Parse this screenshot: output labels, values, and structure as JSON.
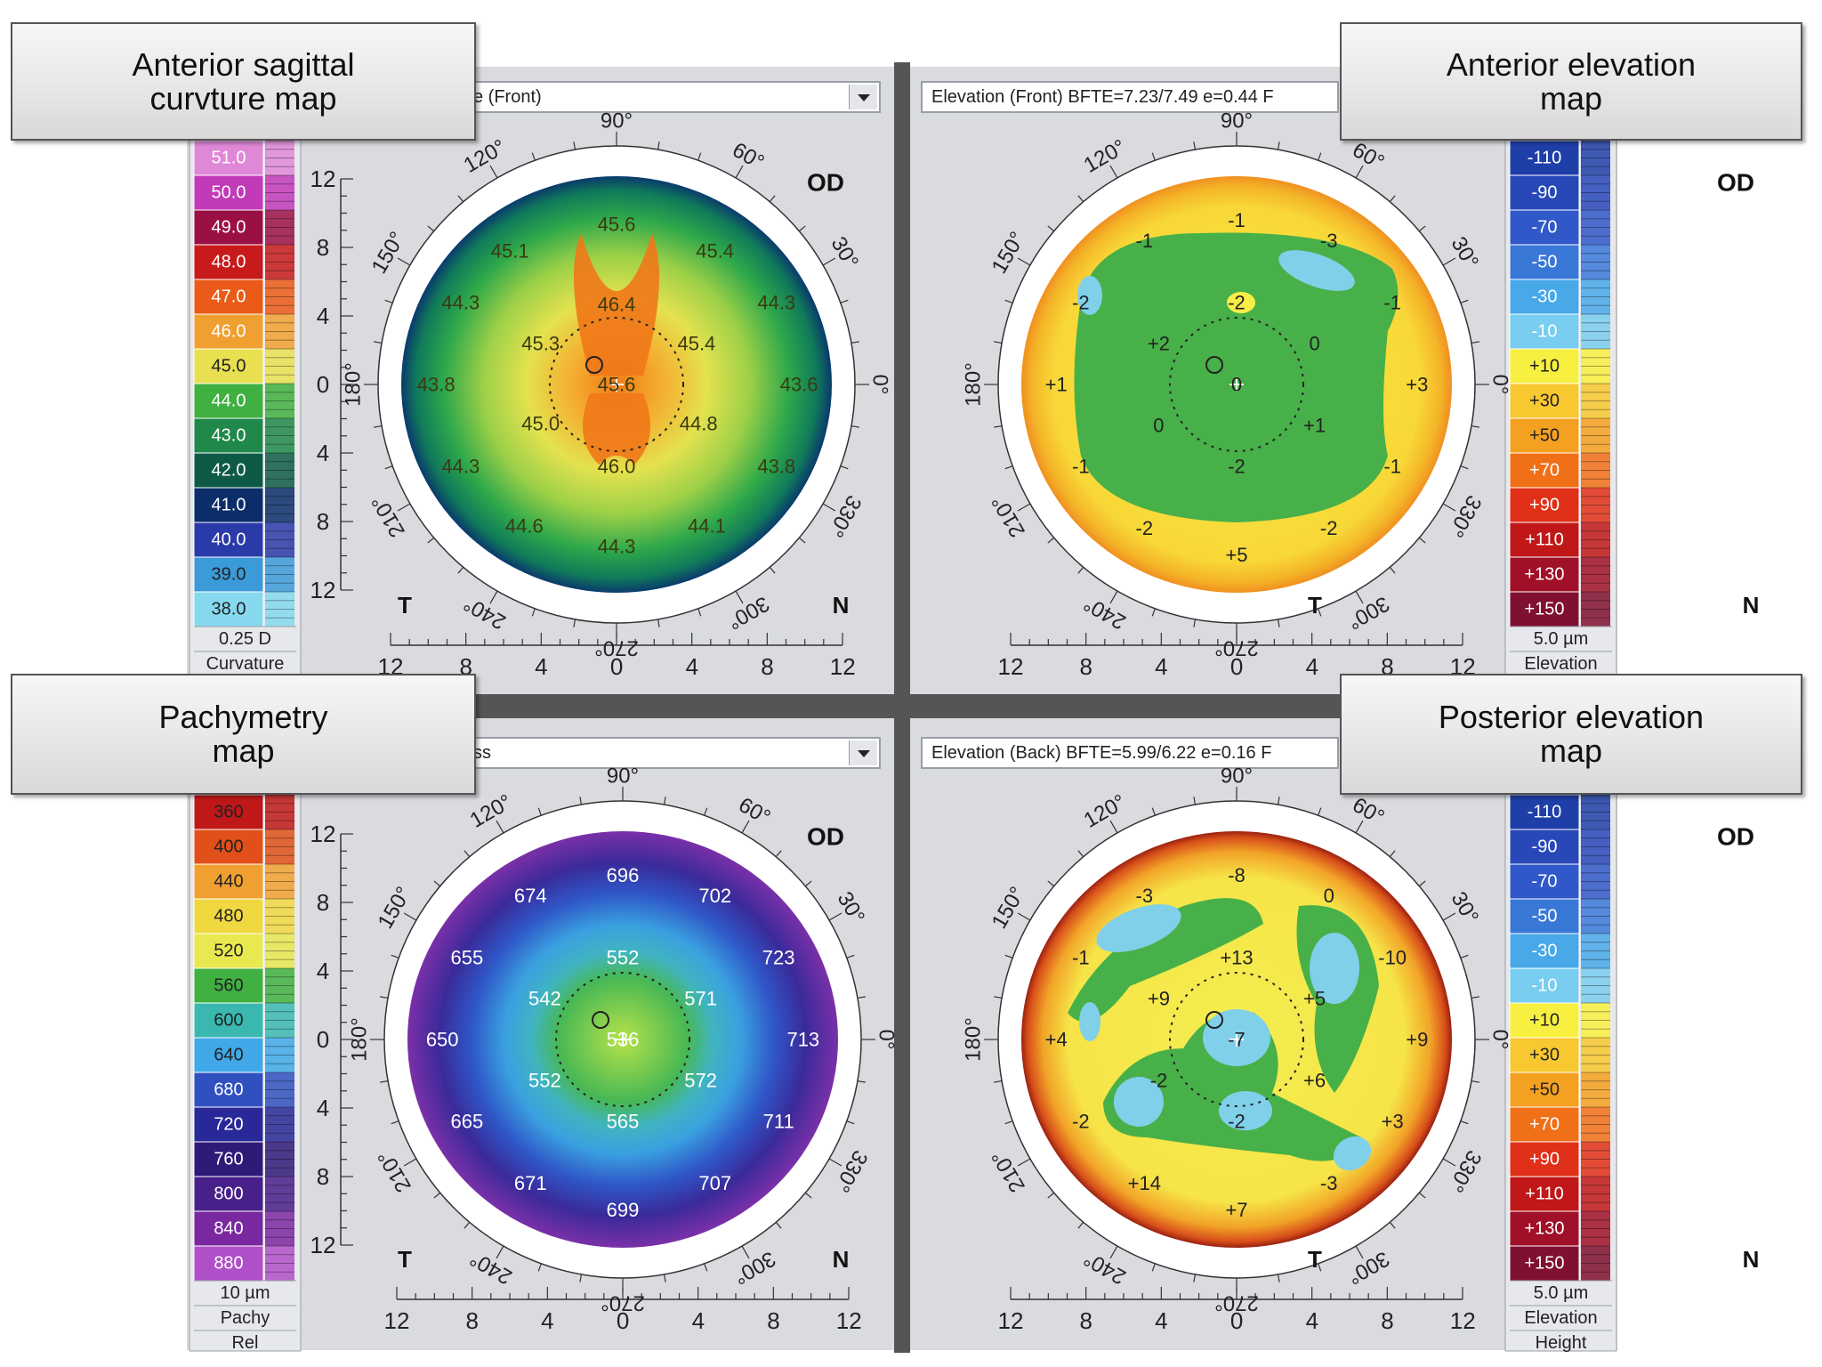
{
  "callouts": {
    "anterior_sagittal": "Anterior sagittal\ncurvture map",
    "anterior_elevation": "Anterior elevation\nmap",
    "pachymetry": "Pachymetry\nmap",
    "posterior_elevation": "Posterior elevation\nmap"
  },
  "panels": [
    {
      "id": "anterior-sagittal",
      "dropdown": "e (Front)",
      "eye": "OD",
      "left_side": "T",
      "right_side": "N",
      "scale_units": [
        "0.25 D",
        "Curvature"
      ],
      "scale_labels": [
        "51.0",
        "50.0",
        "49.0",
        "48.0",
        "47.0",
        "46.0",
        "45.0",
        "44.0",
        "43.0",
        "42.0",
        "41.0",
        "40.0",
        "39.0",
        "38.0"
      ],
      "scale_colors": [
        "#e088d8",
        "#c13ab8",
        "#9a1045",
        "#c81a1a",
        "#ea5a18",
        "#f0a030",
        "#e8e050",
        "#40b040",
        "#20884a",
        "#0e5a46",
        "#0b2e6a",
        "#2a3aa8",
        "#3b9ad8",
        "#86d8ef"
      ],
      "map_label_color": "#3a3a10",
      "map_labels": [
        {
          "t": "45.6",
          "x": 0,
          "y": 7.8
        },
        {
          "t": "45.1",
          "x": -5.2,
          "y": 6.5
        },
        {
          "t": "45.4",
          "x": 4.8,
          "y": 6.5
        },
        {
          "t": "44.3",
          "x": -7.6,
          "y": 4
        },
        {
          "t": "46.4",
          "x": 0,
          "y": 3.9
        },
        {
          "t": "44.3",
          "x": 7.8,
          "y": 4
        },
        {
          "t": "45.3",
          "x": -3.7,
          "y": 2
        },
        {
          "t": "45.4",
          "x": 3.9,
          "y": 2
        },
        {
          "t": "43.8",
          "x": -8.8,
          "y": 0
        },
        {
          "t": "45.6",
          "x": 0,
          "y": 0
        },
        {
          "t": "43.6",
          "x": 8.9,
          "y": 0
        },
        {
          "t": "45.0",
          "x": -3.7,
          "y": -1.9
        },
        {
          "t": "44.8",
          "x": 4,
          "y": -1.9
        },
        {
          "t": "44.3",
          "x": -7.6,
          "y": -4
        },
        {
          "t": "46.0",
          "x": 0,
          "y": -4
        },
        {
          "t": "43.8",
          "x": 7.8,
          "y": -4
        },
        {
          "t": "44.6",
          "x": -4.5,
          "y": -6.9
        },
        {
          "t": "44.3",
          "x": 0,
          "y": -7.9
        },
        {
          "t": "44.1",
          "x": 4.4,
          "y": -6.9
        }
      ]
    },
    {
      "id": "anterior-elevation",
      "dropdown": "Elevation (Front)  BFTE=7.23/7.49 e=0.44 F",
      "eye": "OD",
      "left_side": "T",
      "right_side": "N",
      "scale_units": [
        "5.0 µm",
        "Elevation"
      ],
      "scale_labels": [
        "-110",
        "-90",
        "-70",
        "-50",
        "-30",
        "-10",
        "+10",
        "+30",
        "+50",
        "+70",
        "+90",
        "+110",
        "+130",
        "+150"
      ],
      "scale_colors": [
        "#1f3fa8",
        "#2848b8",
        "#3058c8",
        "#3a78d8",
        "#48a8e8",
        "#78cdf0",
        "#f8f040",
        "#f8c830",
        "#f4a020",
        "#f07018",
        "#e03018",
        "#c01818",
        "#a01028",
        "#801030"
      ],
      "map_label_color": "#222222",
      "map_labels": [
        {
          "t": "-1",
          "x": 0,
          "y": 8
        },
        {
          "t": "-1",
          "x": -4.5,
          "y": 7
        },
        {
          "t": "-3",
          "x": 4.5,
          "y": 7
        },
        {
          "t": "-2",
          "x": -7.6,
          "y": 4
        },
        {
          "t": "-2",
          "x": 0,
          "y": 4
        },
        {
          "t": "-1",
          "x": 7.6,
          "y": 4
        },
        {
          "t": "+2",
          "x": -3.8,
          "y": 2
        },
        {
          "t": "0",
          "x": 3.8,
          "y": 2
        },
        {
          "t": "+1",
          "x": -8.8,
          "y": 0
        },
        {
          "t": "0",
          "x": 0,
          "y": 0
        },
        {
          "t": "+3",
          "x": 8.8,
          "y": 0
        },
        {
          "t": "0",
          "x": -3.8,
          "y": -2
        },
        {
          "t": "+1",
          "x": 3.8,
          "y": -2
        },
        {
          "t": "-1",
          "x": -7.6,
          "y": -4
        },
        {
          "t": "-2",
          "x": 0,
          "y": -4
        },
        {
          "t": "-1",
          "x": 7.6,
          "y": -4
        },
        {
          "t": "-2",
          "x": -4.5,
          "y": -7
        },
        {
          "t": "-2",
          "x": 4.5,
          "y": -7
        },
        {
          "t": "+5",
          "x": 0,
          "y": -8.3
        }
      ]
    },
    {
      "id": "pachymetry",
      "dropdown": "ss",
      "eye": "OD",
      "left_side": "T",
      "right_side": "N",
      "scale_units": [
        "10 µm",
        "Pachy",
        "Rel"
      ],
      "scale_labels": [
        "360",
        "400",
        "440",
        "480",
        "520",
        "560",
        "600",
        "640",
        "680",
        "720",
        "760",
        "800",
        "840",
        "880"
      ],
      "scale_colors": [
        "#c01818",
        "#e05018",
        "#f0a030",
        "#f0d840",
        "#e8e850",
        "#40b040",
        "#3ab8b0",
        "#40a8e8",
        "#3050c0",
        "#282898",
        "#301a78",
        "#48208a",
        "#7a28a0",
        "#b050c8"
      ],
      "map_label_color": "#ffffff",
      "map_labels": [
        {
          "t": "696",
          "x": 0,
          "y": 8
        },
        {
          "t": "674",
          "x": -4.5,
          "y": 7
        },
        {
          "t": "702",
          "x": 4.5,
          "y": 7
        },
        {
          "t": "655",
          "x": -7.6,
          "y": 4
        },
        {
          "t": "552",
          "x": 0,
          "y": 4
        },
        {
          "t": "723",
          "x": 7.6,
          "y": 4
        },
        {
          "t": "542",
          "x": -3.8,
          "y": 2
        },
        {
          "t": "571",
          "x": 3.8,
          "y": 2
        },
        {
          "t": "650",
          "x": -8.8,
          "y": 0
        },
        {
          "t": "536",
          "x": 0,
          "y": 0
        },
        {
          "t": "713",
          "x": 8.8,
          "y": 0
        },
        {
          "t": "552",
          "x": -3.8,
          "y": -2
        },
        {
          "t": "572",
          "x": 3.8,
          "y": -2
        },
        {
          "t": "665",
          "x": -7.6,
          "y": -4
        },
        {
          "t": "565",
          "x": 0,
          "y": -4
        },
        {
          "t": "711",
          "x": 7.6,
          "y": -4
        },
        {
          "t": "671",
          "x": -4.5,
          "y": -7
        },
        {
          "t": "707",
          "x": 4.5,
          "y": -7
        },
        {
          "t": "699",
          "x": 0,
          "y": -8.3
        }
      ]
    },
    {
      "id": "posterior-elevation",
      "dropdown": "Elevation (Back)  BFTE=5.99/6.22 e=0.16 F",
      "eye": "OD",
      "left_side": "T",
      "right_side": "N",
      "scale_units": [
        "5.0 µm",
        "Elevation",
        "Height"
      ],
      "scale_labels": [
        "-110",
        "-90",
        "-70",
        "-50",
        "-30",
        "-10",
        "+10",
        "+30",
        "+50",
        "+70",
        "+90",
        "+110",
        "+130",
        "+150"
      ],
      "scale_colors": [
        "#1f3fa8",
        "#2848b8",
        "#3058c8",
        "#3a78d8",
        "#48a8e8",
        "#78cdf0",
        "#f8f040",
        "#f8c830",
        "#f4a020",
        "#f07018",
        "#e03018",
        "#c01818",
        "#a01028",
        "#801030"
      ],
      "map_label_color": "#222222",
      "map_labels": [
        {
          "t": "-8",
          "x": 0,
          "y": 8
        },
        {
          "t": "-3",
          "x": -4.5,
          "y": 7
        },
        {
          "t": "0",
          "x": 4.5,
          "y": 7
        },
        {
          "t": "-1",
          "x": -7.6,
          "y": 4
        },
        {
          "t": "+13",
          "x": 0,
          "y": 4
        },
        {
          "t": "-10",
          "x": 7.6,
          "y": 4
        },
        {
          "t": "+9",
          "x": -3.8,
          "y": 2
        },
        {
          "t": "+5",
          "x": 3.8,
          "y": 2
        },
        {
          "t": "+4",
          "x": -8.8,
          "y": 0
        },
        {
          "t": "-7",
          "x": 0,
          "y": 0
        },
        {
          "t": "+9",
          "x": 8.8,
          "y": 0
        },
        {
          "t": "-2",
          "x": -3.8,
          "y": -2
        },
        {
          "t": "+6",
          "x": 3.8,
          "y": -2
        },
        {
          "t": "-2",
          "x": -7.6,
          "y": -4
        },
        {
          "t": "-2",
          "x": 0,
          "y": -4
        },
        {
          "t": "+3",
          "x": 7.6,
          "y": -4
        },
        {
          "t": "+14",
          "x": -4.5,
          "y": -7
        },
        {
          "t": "-3",
          "x": 4.5,
          "y": -7
        },
        {
          "t": "+7",
          "x": 0,
          "y": -8.3
        }
      ]
    }
  ],
  "angle_labels": [
    "90°",
    "60°",
    "30°",
    "0°",
    "330°",
    "300°",
    "270°",
    "240°",
    "210°",
    "180°",
    "150°",
    "120°"
  ],
  "vertical_axis_labels": [
    "12",
    "8",
    "4",
    "0",
    "4",
    "8",
    "12"
  ],
  "horizontal_axis_labels": [
    "12",
    "8",
    "4",
    "0",
    "4",
    "8",
    "12"
  ]
}
